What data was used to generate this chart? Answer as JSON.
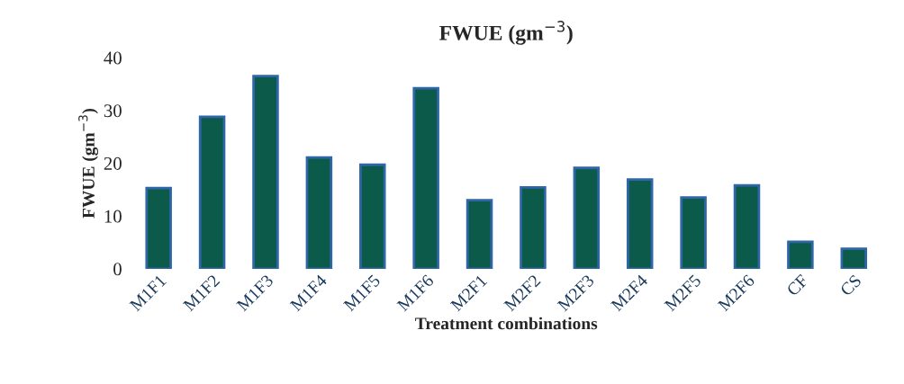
{
  "chart_data": {
    "type": "bar",
    "title": "FWUE (gm$^{−3}$)",
    "xlabel": "Treatment combinations",
    "ylabel": "FWUE (gm$^{−3}$)",
    "categories": [
      "M1F1",
      "M1F2",
      "M1F3",
      "M1F4",
      "M1F5",
      "M1F6",
      "M2F1",
      "M2F2",
      "M2F3",
      "M2F4",
      "M2F5",
      "M2F6",
      "CF",
      "CS"
    ],
    "series": [
      {
        "color": "#0b5a4a",
        "values": [
          15.3,
          28.8,
          36.5,
          21.1,
          19.7,
          34.2,
          13.0,
          15.4,
          19.1,
          16.9,
          13.5,
          15.8,
          5.1,
          3.8
        ]
      }
    ],
    "ylim": [
      0,
      40
    ],
    "yticks": [
      0,
      10,
      20,
      30,
      40
    ],
    "grid": false,
    "legend": false
  }
}
